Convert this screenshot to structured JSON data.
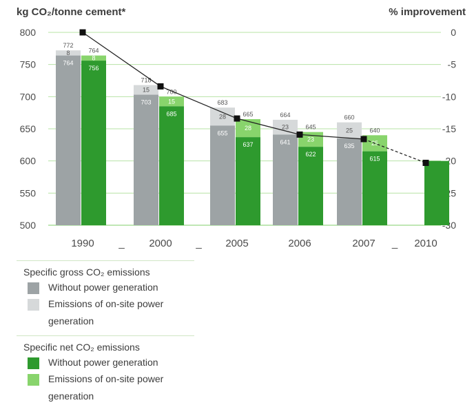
{
  "chart_data": {
    "type": "bar",
    "title": "",
    "ylabel_left": "kg CO₂/tonne cement*",
    "ylabel_right": "% improvement",
    "ylim_left": [
      500,
      800
    ],
    "yticks_left": [
      "800",
      "750",
      "700",
      "650",
      "600",
      "550",
      "500"
    ],
    "ylim_right": [
      -30,
      0
    ],
    "yticks_right": [
      "0",
      "-5",
      "-10",
      "-15",
      "-20",
      "-25",
      "-30"
    ],
    "categories": [
      "1990",
      "2000",
      "2005",
      "2006",
      "2007",
      "2010"
    ],
    "gaps_after": [
      true,
      true,
      false,
      false,
      true,
      false
    ],
    "gap_mark": "_",
    "grid": true,
    "series": [
      {
        "name": "Without power generation",
        "group": "Specific gross CO₂ emissions",
        "color": "#9da3a5",
        "values": [
          764,
          703,
          655,
          641,
          635,
          null
        ],
        "labels": [
          "764",
          "703",
          "655",
          "641",
          "635",
          ""
        ]
      },
      {
        "name": "Emissions of on-site power generation",
        "group": "Specific gross CO₂ emissions",
        "color": "#d6d9da",
        "values": [
          8,
          15,
          28,
          23,
          25,
          null
        ],
        "labels": [
          "8",
          "15",
          "28",
          "23",
          "25",
          ""
        ]
      },
      {
        "name": "Without power generation",
        "group": "Specific net CO₂ emissions",
        "color": "#2e9a2e",
        "values": [
          756,
          685,
          637,
          622,
          615,
          600
        ],
        "labels": [
          "756",
          "685",
          "637",
          "622",
          "615",
          ""
        ]
      },
      {
        "name": "Emissions of on-site power generation",
        "group": "Specific net CO₂ emissions",
        "color": "#88d46c",
        "values": [
          8,
          15,
          28,
          23,
          25,
          null
        ],
        "labels": [
          "8",
          "15",
          "28",
          "23",
          "25",
          ""
        ]
      }
    ],
    "gross_totals": [
      "772",
      "718",
      "683",
      "664",
      "660",
      ""
    ],
    "net_totals": [
      "764",
      "700",
      "665",
      "645",
      "640",
      ""
    ],
    "improvement_line": {
      "values": [
        0,
        -8.4,
        -13.4,
        -15.9,
        -16.6,
        -20.3
      ],
      "dashed_from_index": 4,
      "color": "#222222"
    }
  },
  "legend": {
    "groups": [
      {
        "title": "Specific gross CO₂ emissions",
        "items": [
          {
            "label": "Without power generation",
            "color": "#9da3a5"
          },
          {
            "label": "Emissions of on-site power generation",
            "color": "#d6d9da"
          }
        ]
      },
      {
        "title": "Specific net CO₂ emissions",
        "items": [
          {
            "label": "Without power generation",
            "color": "#2e9a2e"
          },
          {
            "label": "Emissions of on-site power generation",
            "color": "#88d46c"
          }
        ]
      }
    ]
  }
}
